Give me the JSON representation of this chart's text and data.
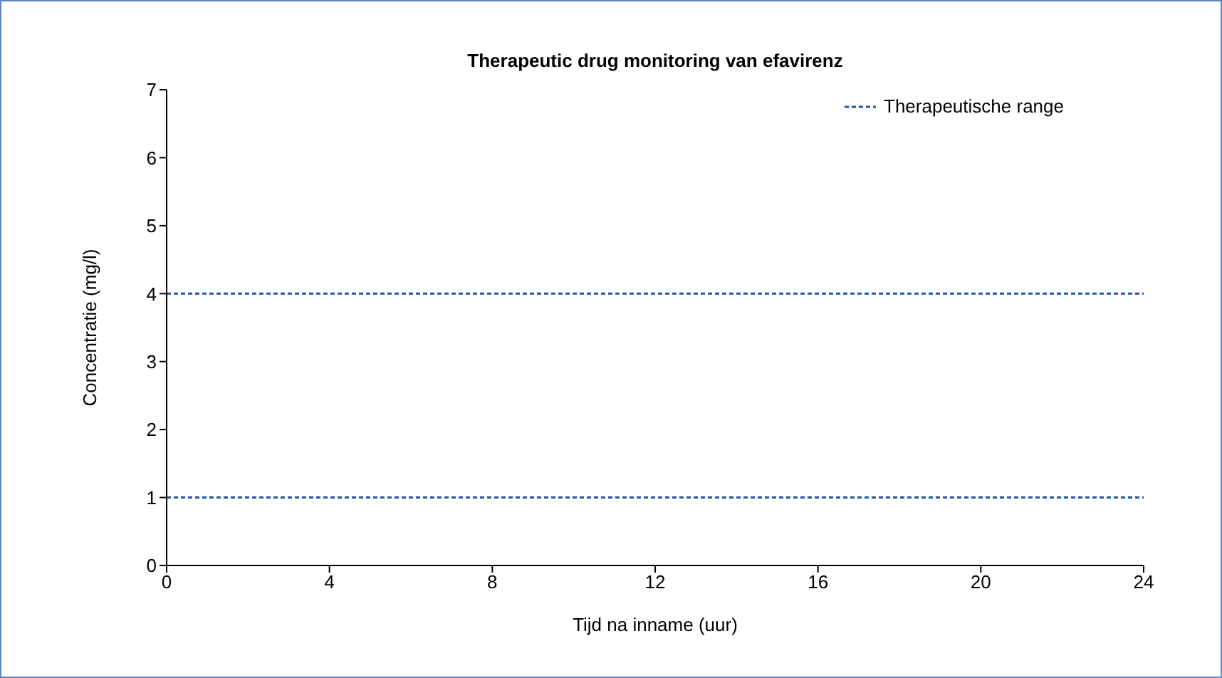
{
  "chart_data": {
    "type": "line",
    "title": "Therapeutic drug monitoring van efavirenz",
    "xlabel": "Tijd na inname (uur)",
    "ylabel": "Concentratie (mg/l)",
    "xlim": [
      0,
      24
    ],
    "xticks": [
      0,
      4,
      8,
      12,
      16,
      20,
      24
    ],
    "ylim": [
      0,
      7
    ],
    "yticks": [
      0,
      1,
      2,
      3,
      4,
      5,
      6,
      7
    ],
    "grid": false,
    "legend": "top right",
    "ref_lines": [
      {
        "axis": "y",
        "value": 4,
        "label": "Therapeutische range",
        "color": "#2456a4",
        "line_style": "dotted"
      },
      {
        "axis": "y",
        "value": 1,
        "color": "#2456a4",
        "line_style": "dotted"
      }
    ]
  }
}
